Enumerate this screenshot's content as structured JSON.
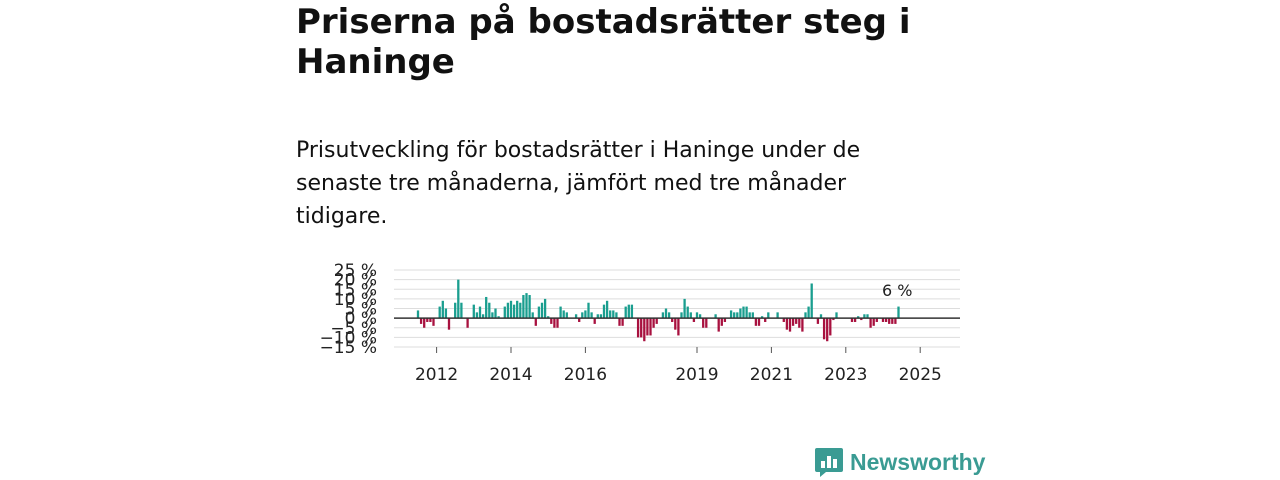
{
  "headline": "Priserna på bostadsrätter steg i Haninge",
  "subtitle": "Prisutveckling för bostadsrätter i Haninge under de senaste tre månaderna, jämfört med tre månader tidigare.",
  "brand": {
    "name": "Newsworthy",
    "icon": "newsworthy-logo-icon",
    "color": "#3a9b93"
  },
  "colors": {
    "positive": "#1a9e8f",
    "negative": "#a8113f",
    "grid": "#dddddd",
    "zero": "#333333"
  },
  "chart_data": {
    "type": "bar",
    "title": "",
    "xlabel": "",
    "ylabel": "",
    "ylim": [
      -15,
      25
    ],
    "y_ticks": [
      -15,
      -10,
      -5,
      0,
      5,
      10,
      15,
      20,
      25
    ],
    "y_tick_labels": [
      "−15 %",
      "−10 %",
      "−5 %",
      "0 %",
      "5 %",
      "10 %",
      "15 %",
      "20 %",
      "25 %"
    ],
    "x_ticks": [
      {
        "label": "2012",
        "year": 2012
      },
      {
        "label": "2014",
        "year": 2014
      },
      {
        "label": "2016",
        "year": 2016
      },
      {
        "label": "2019",
        "year": 2019
      },
      {
        "label": "2021",
        "year": 2021
      },
      {
        "label": "2023",
        "year": 2023
      },
      {
        "label": "2025",
        "year": 2025
      }
    ],
    "start": "2011-07",
    "annotation": "6 %",
    "values": [
      4,
      -3,
      -5,
      -2,
      -2,
      -4,
      0,
      6,
      9,
      5,
      -6,
      0,
      8,
      20,
      8,
      0,
      -5,
      0,
      7,
      3,
      6,
      2,
      11,
      8,
      3,
      5,
      1,
      0,
      6,
      8,
      9,
      7,
      9,
      8,
      12,
      13,
      12,
      3,
      -4,
      6,
      8,
      10,
      1,
      -3,
      -5,
      -5,
      6,
      4,
      3,
      0,
      0,
      2,
      -2,
      3,
      4,
      8,
      3,
      -3,
      2,
      2,
      7,
      9,
      4,
      4,
      3,
      -4,
      -4,
      6,
      7,
      7,
      0,
      -10,
      -10,
      -12,
      -9,
      -9,
      -5,
      -3,
      0,
      3,
      5,
      3,
      -2,
      -6,
      -9,
      3,
      10,
      6,
      3,
      -2,
      3,
      2,
      -5,
      -5,
      0,
      0,
      2,
      -7,
      -4,
      -2,
      0,
      4,
      3,
      3,
      5,
      6,
      6,
      3,
      3,
      -4,
      -4,
      1,
      -2,
      3,
      0,
      0,
      3,
      0,
      -2,
      -6,
      -7,
      -4,
      -3,
      -5,
      -7,
      3,
      6,
      18,
      0,
      -3,
      2,
      -11,
      -12,
      -9,
      -1,
      3,
      0,
      0,
      0,
      0,
      -2,
      -2,
      1,
      -1,
      2,
      2,
      -5,
      -4,
      -2,
      0,
      -2,
      -2,
      -3,
      -3,
      -3,
      6
    ]
  }
}
